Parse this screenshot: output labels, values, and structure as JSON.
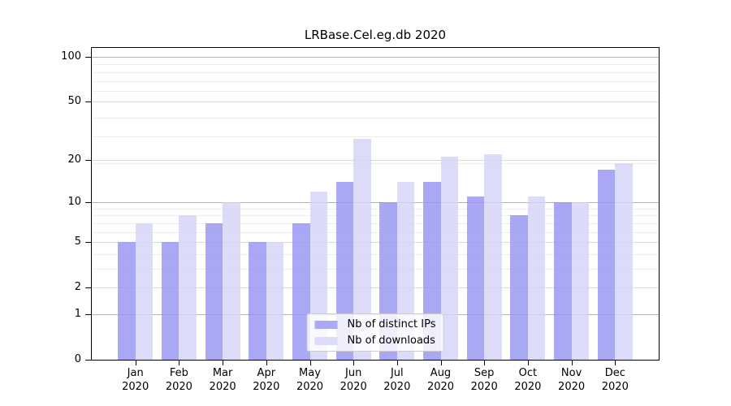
{
  "title": "LRBase.Cel.eg.db 2020",
  "legend": {
    "items": [
      {
        "label": "Nb of distinct IPs",
        "color": "#a9a9f4"
      },
      {
        "label": "Nb of downloads",
        "color": "#dcdcf8"
      }
    ]
  },
  "colors": {
    "distinct_ips_fill": "rgba(146,146,243,0.8)",
    "downloads_fill": "rgba(211,211,248,0.8)",
    "grid_decade": "#b3b3b3",
    "grid_mid": "#dbdbdb",
    "grid_minor": "#ededed"
  },
  "chart_data": {
    "type": "bar",
    "title": "LRBase.Cel.eg.db 2020",
    "categories": [
      "Jan 2020",
      "Feb 2020",
      "Mar 2020",
      "Apr 2020",
      "May 2020",
      "Jun 2020",
      "Jul 2020",
      "Aug 2020",
      "Sep 2020",
      "Oct 2020",
      "Nov 2020",
      "Dec 2020"
    ],
    "month_labels": [
      "Jan",
      "Feb",
      "Mar",
      "Apr",
      "May",
      "Jun",
      "Jul",
      "Aug",
      "Sep",
      "Oct",
      "Nov",
      "Dec"
    ],
    "year": "2020",
    "series": [
      {
        "name": "Nb of distinct IPs",
        "values": [
          5,
          5,
          7,
          5,
          7,
          14,
          10,
          14,
          11,
          8,
          10,
          17
        ]
      },
      {
        "name": "Nb of downloads",
        "values": [
          7,
          8,
          10,
          5,
          12,
          28,
          14,
          21,
          22,
          11,
          10,
          19
        ]
      }
    ],
    "xlabel": "",
    "ylabel": "",
    "yscale": "log1p",
    "yticks": [
      0,
      1,
      2,
      5,
      10,
      20,
      50,
      100
    ],
    "yticks_decade": [
      1,
      10,
      100
    ],
    "yticks_minor": [
      3,
      4,
      6,
      7,
      8,
      9,
      19,
      29,
      39,
      59,
      69,
      79,
      89
    ],
    "ylim": [
      0,
      115
    ],
    "grid": true,
    "legend_position": "lower center"
  }
}
